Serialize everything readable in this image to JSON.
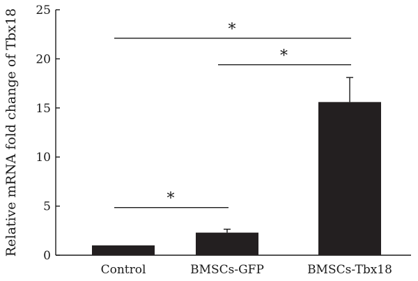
{
  "chart_data": {
    "type": "bar",
    "title": "",
    "xlabel": "",
    "ylabel": "Relative mRNA fold change of Tbx18",
    "categories": [
      "Control",
      "BMSCs-GFP",
      "BMSCs-Tbx18"
    ],
    "values": [
      1.0,
      2.3,
      15.6
    ],
    "errors": [
      0.0,
      0.35,
      2.5
    ],
    "ylim": [
      0,
      25
    ],
    "yticks": [
      0,
      5,
      10,
      15,
      20,
      25
    ],
    "grid": false,
    "legend": "none",
    "bar_color": "#231f20",
    "significance": [
      {
        "from": "Control",
        "to": "BMSCs-GFP",
        "label": "*"
      },
      {
        "from": "BMSCs-GFP",
        "to": "BMSCs-Tbx18",
        "label": "*"
      },
      {
        "from": "Control",
        "to": "BMSCs-Tbx18",
        "label": "*"
      }
    ]
  }
}
